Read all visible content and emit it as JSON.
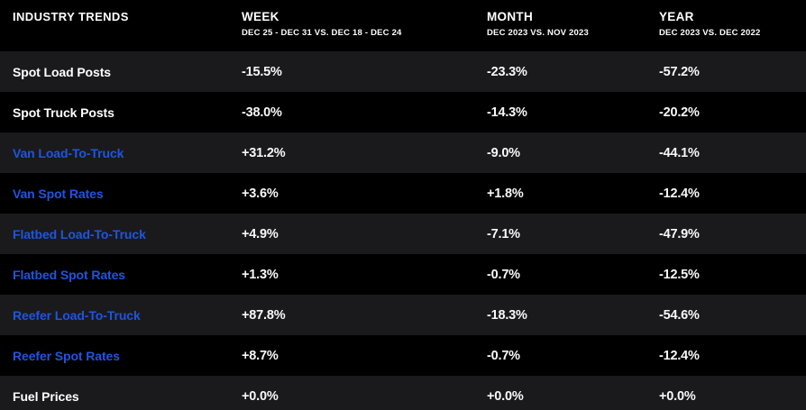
{
  "table": {
    "title": "INDUSTRY TRENDS",
    "columns": [
      {
        "label": "WEEK",
        "sublabel": "DEC 25 - DEC 31 VS. DEC 18 - DEC 24"
      },
      {
        "label": "MONTH",
        "sublabel": "DEC 2023 VS. NOV 2023"
      },
      {
        "label": "YEAR",
        "sublabel": "DEC 2023 VS. DEC 2022"
      }
    ],
    "rows": [
      {
        "label": "Spot Load Posts",
        "accent": false,
        "week": "-15.5%",
        "month": "-23.3%",
        "year": "-57.2%"
      },
      {
        "label": "Spot Truck Posts",
        "accent": false,
        "week": "-38.0%",
        "month": "-14.3%",
        "year": "-20.2%"
      },
      {
        "label": "Van Load-To-Truck",
        "accent": true,
        "week": "+31.2%",
        "month": "-9.0%",
        "year": "-44.1%"
      },
      {
        "label": "Van Spot Rates",
        "accent": true,
        "week": "+3.6%",
        "month": "+1.8%",
        "year": "-12.4%"
      },
      {
        "label": "Flatbed Load-To-Truck",
        "accent": true,
        "week": "+4.9%",
        "month": "-7.1%",
        "year": "-47.9%"
      },
      {
        "label": "Flatbed Spot Rates",
        "accent": true,
        "week": "+1.3%",
        "month": "-0.7%",
        "year": "-12.5%"
      },
      {
        "label": "Reefer Load-To-Truck",
        "accent": true,
        "week": "+87.8%",
        "month": "-18.3%",
        "year": "-54.6%"
      },
      {
        "label": "Reefer Spot Rates",
        "accent": true,
        "week": "+8.7%",
        "month": "-0.7%",
        "year": "-12.4%"
      },
      {
        "label": "Fuel Prices",
        "accent": false,
        "week": "+0.0%",
        "month": "+0.0%",
        "year": "+0.0%"
      }
    ]
  },
  "colors": {
    "background": "#000000",
    "row_alternate": "#1a1a1c",
    "text": "#ffffff",
    "accent_link": "#1e55e0"
  },
  "chart_data": {
    "type": "table",
    "title": "INDUSTRY TRENDS",
    "columns": [
      "WEEK (DEC 25 - DEC 31 VS. DEC 18 - DEC 24)",
      "MONTH (DEC 2023 VS. NOV 2023)",
      "YEAR (DEC 2023 VS. DEC 2022)"
    ],
    "categories": [
      "Spot Load Posts",
      "Spot Truck Posts",
      "Van Load-To-Truck",
      "Van Spot Rates",
      "Flatbed Load-To-Truck",
      "Flatbed Spot Rates",
      "Reefer Load-To-Truck",
      "Reefer Spot Rates",
      "Fuel Prices"
    ],
    "series": [
      {
        "name": "WEEK",
        "values": [
          -15.5,
          -38.0,
          31.2,
          3.6,
          4.9,
          1.3,
          87.8,
          8.7,
          0.0
        ]
      },
      {
        "name": "MONTH",
        "values": [
          -23.3,
          -14.3,
          -9.0,
          1.8,
          -7.1,
          -0.7,
          -18.3,
          -0.7,
          0.0
        ]
      },
      {
        "name": "YEAR",
        "values": [
          -57.2,
          -20.2,
          -44.1,
          -12.4,
          -47.9,
          -12.5,
          -54.6,
          -12.4,
          0.0
        ]
      }
    ],
    "unit": "%"
  }
}
